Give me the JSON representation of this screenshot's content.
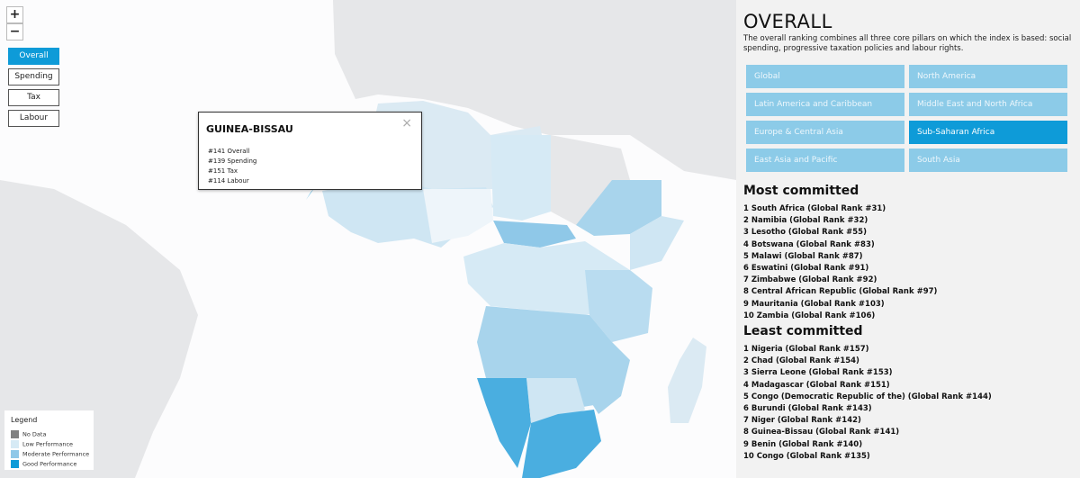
{
  "controls": {
    "zoom_in": "+",
    "zoom_out": "−",
    "layers": [
      "Overall",
      "Spending",
      "Tax",
      "Labour"
    ],
    "active_layer": 0
  },
  "popup": {
    "title": "GUINEA-BISSAU",
    "close": "×",
    "lines": [
      {
        "rank": "#141",
        "label": "Overall"
      },
      {
        "rank": "#139",
        "label": "Spending"
      },
      {
        "rank": "#151",
        "label": "Tax"
      },
      {
        "rank": "#114",
        "label": "Labour"
      }
    ]
  },
  "legend": {
    "title": "Legend",
    "items": [
      {
        "label": "No Data",
        "color": "#808080"
      },
      {
        "label": "Low Performance",
        "color": "#d6eaf5"
      },
      {
        "label": "Moderate Performance",
        "color": "#8fc8e8"
      },
      {
        "label": "Good Performance",
        "color": "#0e9bd8"
      }
    ]
  },
  "panel": {
    "title": "OVERALL",
    "description": "The overall ranking combines all three core pillars on which the index is based: social spending, progressive taxation policies and labour rights.",
    "regions": [
      "Global",
      "North America",
      "Latin America and Caribbean",
      "Middle East and North Africa",
      "Europe & Central Asia",
      "Sub-Saharan Africa",
      "East Asia and Pacific",
      "South Asia"
    ],
    "active_region": 5,
    "most_committed": {
      "heading": "Most committed",
      "items": [
        "1 South Africa (Global Rank #31)",
        "2 Namibia (Global Rank #32)",
        "3 Lesotho (Global Rank #55)",
        "4 Botswana (Global Rank #83)",
        "5 Malawi (Global Rank #87)",
        "6 Eswatini (Global Rank #91)",
        "7 Zimbabwe (Global Rank #92)",
        "8 Central African Republic (Global Rank #97)",
        "9 Mauritania (Global Rank #103)",
        "10 Zambia (Global Rank #106)"
      ]
    },
    "least_committed": {
      "heading": "Least committed",
      "items": [
        "1 Nigeria (Global Rank #157)",
        "2 Chad (Global Rank #154)",
        "3 Sierra Leone (Global Rank #153)",
        "4 Madagascar (Global Rank #151)",
        "5 Congo (Democratic Republic of the) (Global Rank #144)",
        "6 Burundi (Global Rank #143)",
        "7 Niger (Global Rank #142)",
        "8 Guinea-Bissau (Global Rank #141)",
        "9 Benin (Global Rank #140)",
        "10 Congo (Global Rank #135)"
      ]
    }
  }
}
